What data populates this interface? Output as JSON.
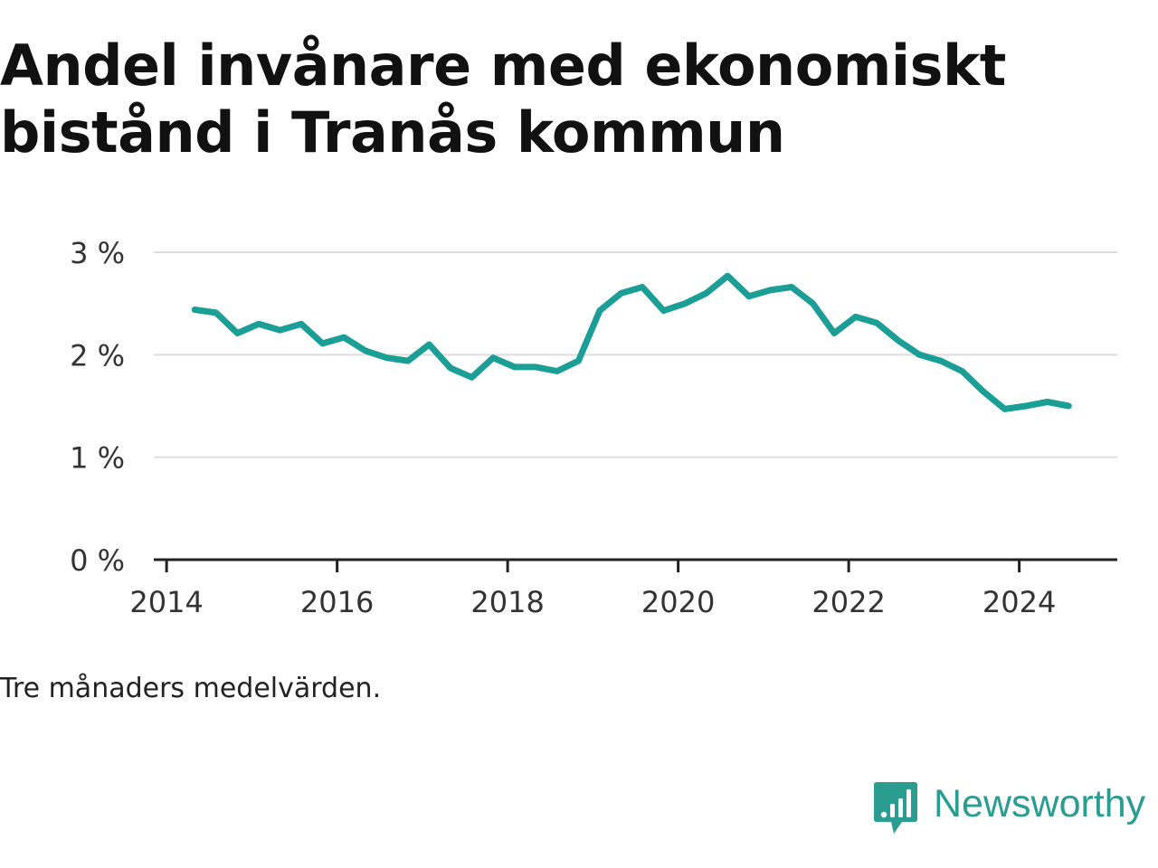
{
  "header": {
    "title": "Andel invånare med ekonomiskt bistånd i Tranås kommun"
  },
  "footer": {
    "note": "Tre månaders medelvärden.",
    "brand": "Newsworthy",
    "brand_icon": "bar-chart-speech-bubble-icon"
  },
  "colors": {
    "line": "#1a9e95",
    "grid": "#dddddd",
    "axis": "#222222",
    "brand": "#2a9d90"
  },
  "chart_data": {
    "type": "line",
    "title": "Andel invånare med ekonomiskt bistånd i Tranås kommun",
    "xlabel": "",
    "ylabel": "",
    "grid": "horizontal",
    "legend": "none",
    "xlim": [
      2013.85,
      2025.15
    ],
    "ylim": [
      0,
      3
    ],
    "x_ticks": [
      2014,
      2016,
      2018,
      2020,
      2022,
      2024
    ],
    "x_tick_labels": [
      "2014",
      "2016",
      "2018",
      "2020",
      "2022",
      "2024"
    ],
    "y_ticks": [
      0,
      1,
      2,
      3
    ],
    "y_tick_labels": [
      "0 %",
      "1 %",
      "2 %",
      "3 %"
    ],
    "series": [
      {
        "x": [
          2014.33,
          2014.58,
          2014.83,
          2015.08,
          2015.33,
          2015.58,
          2015.83,
          2016.08,
          2016.33,
          2016.58,
          2016.83,
          2017.08,
          2017.33,
          2017.58,
          2017.83,
          2018.08,
          2018.33,
          2018.58,
          2018.83,
          2019.08,
          2019.33,
          2019.58,
          2019.83,
          2020.08,
          2020.33,
          2020.58,
          2020.83,
          2021.08,
          2021.33,
          2021.58,
          2021.83,
          2022.08,
          2022.33,
          2022.58,
          2022.83,
          2023.08,
          2023.33,
          2023.58,
          2023.83,
          2024.08,
          2024.33,
          2024.58
        ],
        "values": [
          2.44,
          2.41,
          2.21,
          2.3,
          2.24,
          2.3,
          2.11,
          2.17,
          2.04,
          1.97,
          1.94,
          2.1,
          1.87,
          1.78,
          1.97,
          1.88,
          1.88,
          1.84,
          1.94,
          2.43,
          2.6,
          2.66,
          2.43,
          2.5,
          2.6,
          2.77,
          2.57,
          2.63,
          2.66,
          2.5,
          2.21,
          2.37,
          2.31,
          2.14,
          2.0,
          1.94,
          1.84,
          1.64,
          1.47,
          1.5,
          1.54,
          1.5
        ]
      }
    ]
  }
}
